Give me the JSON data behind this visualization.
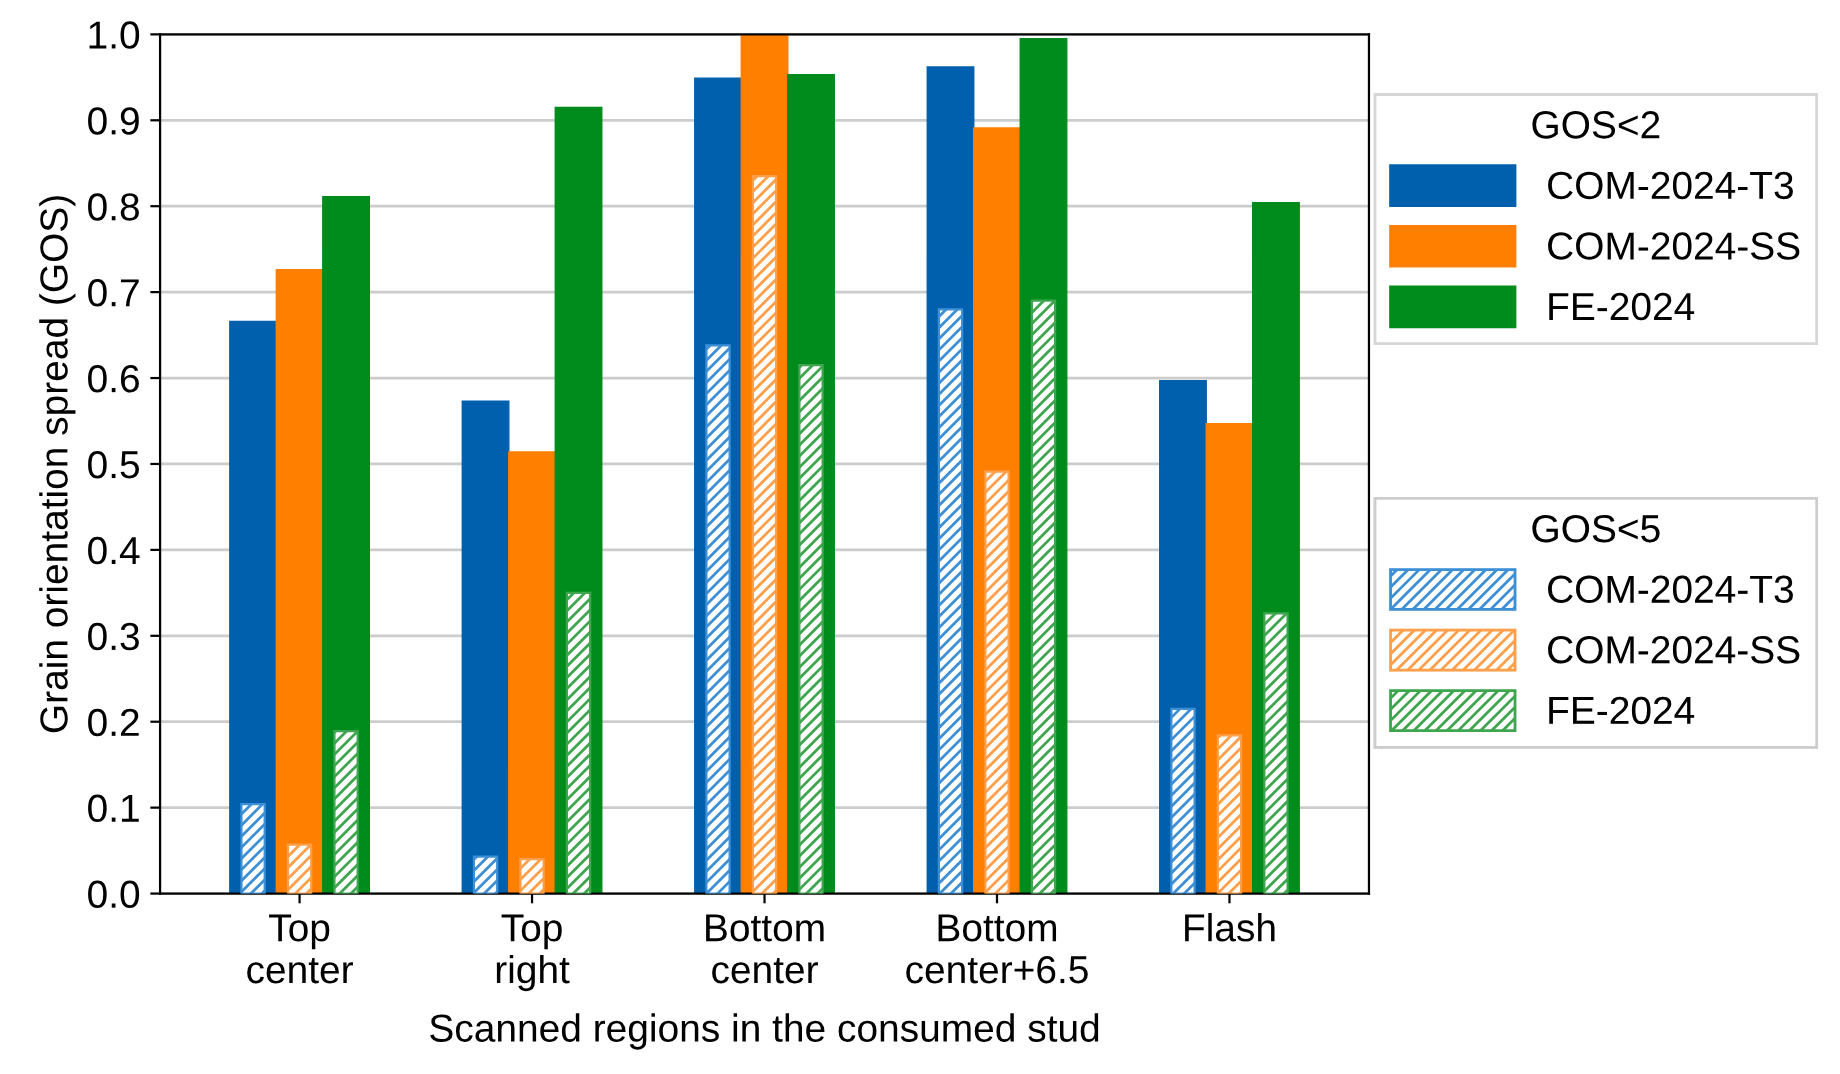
{
  "chart_data": {
    "type": "bar",
    "xlabel": "Scanned regions in the consumed stud",
    "ylabel": "Grain orientation spread (GOS)",
    "categories": [
      "Top\ncenter",
      "Top\nright",
      "Bottom\ncenter",
      "Bottom\ncenter+6.5",
      "Flash"
    ],
    "legend_title": [
      "GOS<2",
      "GOS<5"
    ],
    "series": [
      {
        "name": "COM-2024-T3",
        "color": "#0060ad",
        "values": [
          0.666,
          0.573,
          0.949,
          0.962,
          0.597
        ]
      },
      {
        "name": "COM-2024-SS",
        "color": "#ff7f00",
        "values": [
          0.726,
          0.514,
          1.0,
          0.891,
          0.547
        ]
      },
      {
        "name": "FE-2024",
        "color": "#008c1c",
        "values": [
          0.811,
          0.915,
          0.953,
          0.995,
          0.804
        ]
      },
      {
        "name": "COM-2024-T3",
        "color": "#3d8fd6",
        "values": [
          0.104,
          0.043,
          0.638,
          0.68,
          0.215
        ]
      },
      {
        "name": "COM-2024-SS",
        "color": "#ff9f4a",
        "values": [
          0.057,
          0.04,
          0.835,
          0.491,
          0.184
        ]
      },
      {
        "name": "FE-2024",
        "color": "#3fa64f",
        "values": [
          0.189,
          0.35,
          0.615,
          0.69,
          0.326
        ]
      }
    ],
    "ylim": [
      0,
      1
    ],
    "yticks": [
      {
        "value": 0,
        "label": "0.0"
      },
      0.1,
      0.2,
      0.3,
      0.4,
      0.5,
      0.6,
      0.7,
      0.8,
      0.9,
      {
        "value": 1,
        "label": "1.0"
      }
    ],
    "grid": "y",
    "legend": "right"
  }
}
